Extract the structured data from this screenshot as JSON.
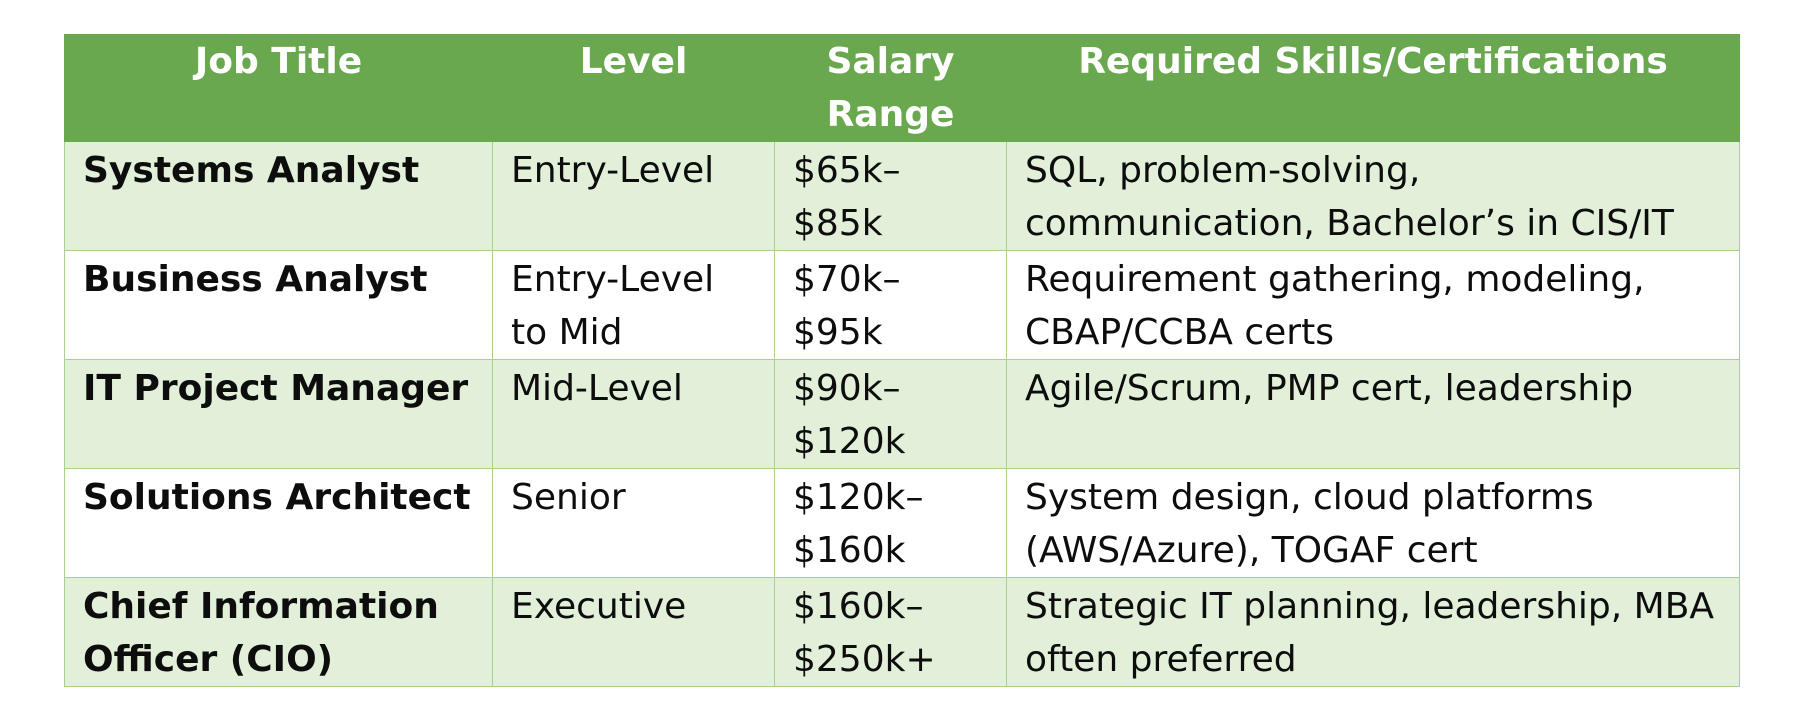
{
  "table": {
    "headers": [
      "Job Title",
      "Level",
      "Salary Range",
      "Required Skills/Certifications"
    ],
    "rows": [
      {
        "job_title": "Systems Analyst",
        "level": "Entry-Level",
        "salary_range": "$65k–$85k",
        "skills": "SQL, problem-solving, communication, Bachelor’s in CIS/IT"
      },
      {
        "job_title": "Business Analyst",
        "level": "Entry-Level to Mid",
        "salary_range": "$70k–$95k",
        "skills": "Requirement gathering, modeling, CBAP/CCBA certs"
      },
      {
        "job_title": "IT Project Manager",
        "level": "Mid-Level",
        "salary_range": "$90k–$120k",
        "skills": "Agile/Scrum, PMP cert, leadership"
      },
      {
        "job_title": "Solutions Architect",
        "level": "Senior",
        "salary_range": "$120k–$160k",
        "skills": "System design, cloud platforms (AWS/Azure), TOGAF cert"
      },
      {
        "job_title": "Chief Information Officer (CIO)",
        "level": "Executive",
        "salary_range": "$160k–$250k+",
        "skills": "Strategic IT planning, leadership, MBA often preferred"
      }
    ]
  },
  "colors": {
    "header_bg": "#6aa84f",
    "row_shaded_bg": "#e2efd9",
    "border": "#a9d18e"
  }
}
